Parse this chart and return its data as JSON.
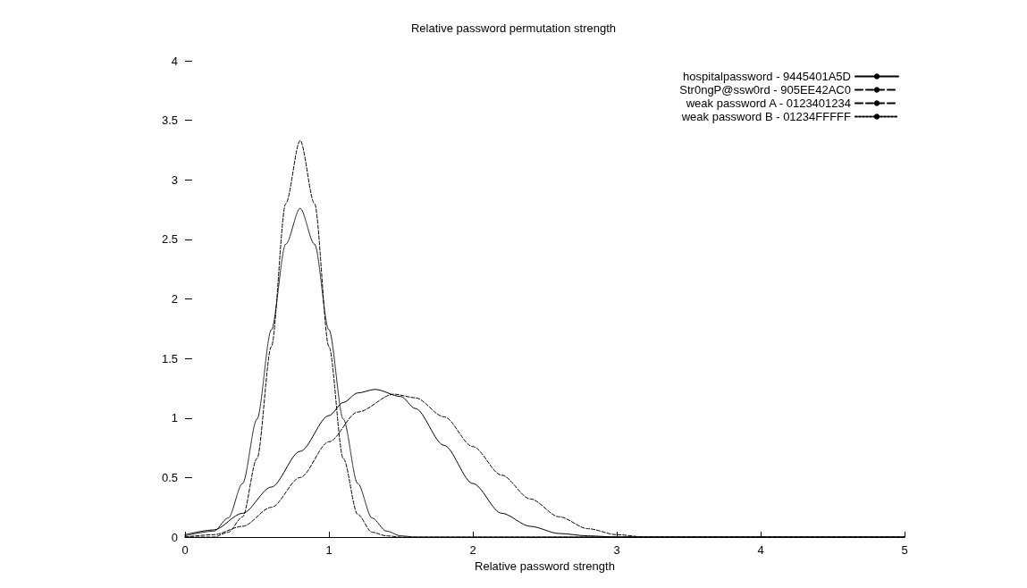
{
  "chart_data": {
    "type": "line",
    "title": "Relative password permutation strength",
    "xlabel": "Relative password strength",
    "xlim": [
      0,
      5
    ],
    "xticks": [
      0,
      1,
      2,
      3,
      4,
      5
    ],
    "ylim": [
      0,
      4
    ],
    "yticks": [
      0,
      0.5,
      1,
      1.5,
      2,
      2.5,
      3,
      3.5,
      4
    ],
    "grid": false,
    "legend": "top right",
    "marker": "none",
    "series": [
      {
        "name": "hospitalpassword - 9445401A5D",
        "color": "#000000",
        "line_style": "solid",
        "x": [
          0,
          0.2,
          0.4,
          0.6,
          0.8,
          1.0,
          1.1,
          1.2,
          1.32,
          1.5,
          1.6,
          1.8,
          2.0,
          2.2,
          2.4,
          2.6,
          2.8,
          3.0,
          5
        ],
        "values": [
          0.02,
          0.06,
          0.2,
          0.42,
          0.72,
          1.02,
          1.13,
          1.21,
          1.24,
          1.18,
          1.08,
          0.77,
          0.45,
          0.2,
          0.09,
          0.03,
          0.01,
          0,
          0
        ]
      },
      {
        "name": "Str0ngP@ssw0rd - 905EE42AC0",
        "color": "#000000",
        "line_style": "dashed",
        "x": [
          0,
          0.2,
          0.4,
          0.6,
          0.8,
          1.0,
          1.2,
          1.45,
          1.6,
          1.8,
          2.0,
          2.2,
          2.4,
          2.6,
          2.8,
          3.0,
          3.2,
          5
        ],
        "values": [
          0,
          0.02,
          0.09,
          0.25,
          0.5,
          0.8,
          1.05,
          1.2,
          1.17,
          1.01,
          0.76,
          0.52,
          0.32,
          0.17,
          0.07,
          0.02,
          0,
          0
        ]
      },
      {
        "name": "weak password A - 0123401234",
        "color": "#000000",
        "line_style": "dashed",
        "x": [
          0,
          0.2,
          0.3,
          0.4,
          0.5,
          0.6,
          0.7,
          0.8,
          0.9,
          1.0,
          1.1,
          1.2,
          1.3,
          1.4,
          1.5,
          5
        ],
        "values": [
          0,
          0,
          0.04,
          0.17,
          0.66,
          1.6,
          2.8,
          3.33,
          2.8,
          1.6,
          0.66,
          0.19,
          0.04,
          0.01,
          0,
          0
        ]
      },
      {
        "name": "weak password B - 01234FFFFF",
        "color": "#000000",
        "line_style": "dotted",
        "x": [
          0,
          0.2,
          0.3,
          0.4,
          0.5,
          0.6,
          0.7,
          0.8,
          0.9,
          1.0,
          1.1,
          1.2,
          1.3,
          1.4,
          1.5,
          1.6,
          5
        ],
        "values": [
          0.01,
          0.05,
          0.16,
          0.45,
          0.99,
          1.74,
          2.46,
          2.76,
          2.46,
          1.74,
          0.99,
          0.45,
          0.16,
          0.05,
          0.01,
          0,
          0
        ]
      }
    ]
  }
}
